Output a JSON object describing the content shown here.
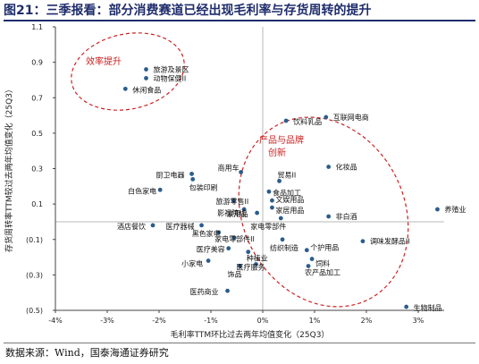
{
  "figure": {
    "title": "图21：三季报看：部分消费赛道已经出现毛利率与存货周转的提升",
    "source": "数据来源：Wind，国泰海通证券研究"
  },
  "colors": {
    "title": "#1f2d6b",
    "point": "#2b5d8c",
    "ellipse": "#cc2222",
    "annotation": "#cc1f1f",
    "axis": "#444444",
    "origin_line": "#b8b8b8"
  },
  "chart_data": {
    "type": "scatter",
    "title": "",
    "xlabel": "毛利率TTM环比过去两年均值变化（25Q3）",
    "ylabel": "存货周转率TTM较过去两年均值变化（25Q3）",
    "xlim": [
      -0.04,
      0.035
    ],
    "ylim": [
      -0.5,
      1.1
    ],
    "xticks": [
      -0.04,
      -0.03,
      -0.02,
      -0.01,
      0,
      0.01,
      0.02,
      0.03
    ],
    "xtick_labels": [
      "-4%",
      "-3%",
      "-2%",
      "-1%",
      "0%",
      "1%",
      "2%",
      "3%"
    ],
    "yticks": [
      -0.5,
      -0.3,
      -0.1,
      0.1,
      0.3,
      0.5,
      0.7,
      0.9,
      1.1
    ],
    "ytick_labels": [
      "(0.5)",
      "(0.3)",
      "(0.1)",
      "0.1",
      "0.3",
      "0.5",
      "0.7",
      "0.9",
      "1.1"
    ],
    "grid": false,
    "legend": "none",
    "points": [
      {
        "label": "旅游及景区",
        "x": -0.0225,
        "y": 0.86
      },
      {
        "label": "动物保健II",
        "x": -0.0225,
        "y": 0.81
      },
      {
        "label": "休闲食品",
        "x": -0.0265,
        "y": 0.75
      },
      {
        "label": "互联网电商",
        "x": 0.0122,
        "y": 0.59
      },
      {
        "label": "饮料乳品",
        "x": 0.0045,
        "y": 0.57
      },
      {
        "label": "化妆品",
        "x": 0.0127,
        "y": 0.31
      },
      {
        "label": "非白酒",
        "x": 0.0127,
        "y": 0.03
      },
      {
        "label": "养殖业",
        "x": 0.0337,
        "y": 0.07
      },
      {
        "label": "调味发酵品II",
        "x": 0.0193,
        "y": -0.11
      },
      {
        "label": "生物制品",
        "x": 0.0277,
        "y": -0.48
      },
      {
        "label": "厨卫电器",
        "x": -0.0137,
        "y": 0.27
      },
      {
        "label": "商用车",
        "x": -0.0042,
        "y": 0.28
      },
      {
        "label": "包装印刷",
        "x": -0.0135,
        "y": 0.24
      },
      {
        "label": "白色家电",
        "x": -0.0198,
        "y": 0.18
      },
      {
        "label": "贸易II",
        "x": 0.0032,
        "y": 0.23
      },
      {
        "label": "食品加工",
        "x": 0.0012,
        "y": 0.17
      },
      {
        "label": "旅游零售II",
        "x": -0.0056,
        "y": 0.12
      },
      {
        "label": "文娱用品",
        "x": 0.0018,
        "y": 0.12
      },
      {
        "label": "家居用品",
        "x": 0.0018,
        "y": 0.08
      },
      {
        "label": "影视院线",
        "x": -0.0036,
        "y": 0.07
      },
      {
        "label": "家用品",
        "x": -0.0011,
        "y": 0.05
      },
      {
        "label": "家电零部件",
        "x": 0.0035,
        "y": 0.02
      },
      {
        "label": "医疗器械",
        "x": -0.0118,
        "y": -0.02
      },
      {
        "label": "酒店餐饮",
        "x": -0.0212,
        "y": -0.02
      },
      {
        "label": "黑色家电",
        "x": -0.0085,
        "y": -0.06
      },
      {
        "label": "家电零部件II",
        "x": -0.0055,
        "y": -0.09
      },
      {
        "label": "纺织制造",
        "x": 0.0038,
        "y": -0.1
      },
      {
        "label": "医疗美容",
        "x": -0.0066,
        "y": -0.15
      },
      {
        "label": "种植业",
        "x": -0.0028,
        "y": -0.17
      },
      {
        "label": "个护用品",
        "x": 0.0085,
        "y": -0.16
      },
      {
        "label": "饲料",
        "x": 0.0095,
        "y": -0.21
      },
      {
        "label": "小家电",
        "x": -0.0105,
        "y": -0.22
      },
      {
        "label": "饰品",
        "x": -0.0044,
        "y": -0.25
      },
      {
        "label": "医疗服务",
        "x": -0.0013,
        "y": -0.24
      },
      {
        "label": "农产品加工",
        "x": 0.0088,
        "y": -0.25
      },
      {
        "label": "医药商业",
        "x": -0.0068,
        "y": -0.39
      }
    ],
    "annotations": [
      {
        "text": "效率提升"
      },
      {
        "text": "产品与品牌创新"
      }
    ]
  }
}
